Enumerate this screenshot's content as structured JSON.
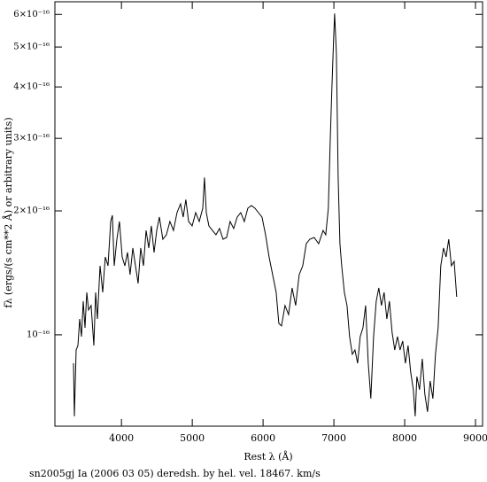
{
  "chart_data": {
    "type": "line",
    "caption": "sn2005gj Ia (2006 03 05) deredsh. by hel. vel. 18467. km/s",
    "xlabel": "Rest λ (Å)",
    "ylabel": "fλ (ergs/(s cm**2 Å) or arbitrary units)",
    "log_y": true,
    "color": "#000000",
    "xlim": [
      3060,
      9100
    ],
    "xticks": [
      4000,
      5000,
      6000,
      7000,
      8000,
      9000
    ],
    "ylim": [
      6e-17,
      6.44e-16
    ],
    "yticks": [
      {
        "value": 1e-16,
        "label": "10⁻¹⁶"
      },
      {
        "value": 2e-16,
        "label": "2×10⁻¹⁶"
      },
      {
        "value": 3e-16,
        "label": "3×10⁻¹⁶"
      },
      {
        "value": 4e-16,
        "label": "4×10⁻¹⁶"
      },
      {
        "value": 5e-16,
        "label": "5×10⁻¹⁶"
      },
      {
        "value": 6e-16,
        "label": "6×10⁻¹⁶"
      }
    ],
    "x": [
      3322,
      3335,
      3360,
      3385,
      3410,
      3435,
      3460,
      3485,
      3510,
      3535,
      3572,
      3610,
      3635,
      3660,
      3698,
      3735,
      3772,
      3810,
      3848,
      3872,
      3898,
      3935,
      3972,
      4010,
      4048,
      4085,
      4122,
      4160,
      4198,
      4235,
      4272,
      4310,
      4348,
      4385,
      4422,
      4460,
      4498,
      4535,
      4585,
      4635,
      4685,
      4735,
      4785,
      4835,
      4872,
      4910,
      4948,
      4998,
      5048,
      5098,
      5148,
      5172,
      5198,
      5235,
      5285,
      5335,
      5385,
      5435,
      5485,
      5535,
      5585,
      5635,
      5685,
      5735,
      5785,
      5835,
      5885,
      5935,
      5985,
      6035,
      6085,
      6135,
      6185,
      6222,
      6260,
      6310,
      6360,
      6410,
      6460,
      6510,
      6560,
      6610,
      6660,
      6722,
      6785,
      6848,
      6885,
      6922,
      6948,
      6972,
      6998,
      7010,
      7035,
      7060,
      7085,
      7110,
      7148,
      7185,
      7222,
      7260,
      7298,
      7335,
      7372,
      7410,
      7448,
      7485,
      7522,
      7560,
      7598,
      7635,
      7672,
      7710,
      7748,
      7785,
      7822,
      7860,
      7898,
      7935,
      7972,
      8010,
      8048,
      8085,
      8122,
      8148,
      8172,
      8210,
      8248,
      8285,
      8322,
      8360,
      8398,
      8435,
      8472,
      8510,
      8548,
      8585,
      8622,
      8660,
      8698,
      8735
    ],
    "values": [
      8.53e-17,
      6.34e-17,
      9.19e-17,
      9.42e-17,
      1.093e-16,
      9.9e-17,
      1.207e-16,
      1.04e-16,
      1.268e-16,
      1.149e-16,
      1.178e-16,
      9.42e-17,
      1.268e-16,
      1.093e-16,
      1.471e-16,
      1.268e-16,
      1.546e-16,
      1.471e-16,
      1.885e-16,
      1.951e-16,
      1.471e-16,
      1.707e-16,
      1.885e-16,
      1.546e-16,
      1.471e-16,
      1.585e-16,
      1.4e-16,
      1.625e-16,
      1.471e-16,
      1.333e-16,
      1.625e-16,
      1.471e-16,
      1.793e-16,
      1.625e-16,
      1.839e-16,
      1.585e-16,
      1.793e-16,
      1.932e-16,
      1.707e-16,
      1.75e-16,
      1.885e-16,
      1.793e-16,
      1.98e-16,
      2.08e-16,
      1.932e-16,
      2.13e-16,
      1.885e-16,
      1.839e-16,
      1.98e-16,
      1.885e-16,
      2.03e-16,
      2.41e-16,
      1.98e-16,
      1.839e-16,
      1.793e-16,
      1.75e-16,
      1.812e-16,
      1.707e-16,
      1.724e-16,
      1.885e-16,
      1.812e-16,
      1.932e-16,
      1.98e-16,
      1.885e-16,
      2.03e-16,
      2.06e-16,
      2.03e-16,
      1.98e-16,
      1.932e-16,
      1.75e-16,
      1.546e-16,
      1.4e-16,
      1.268e-16,
      1.066e-16,
      1.051e-16,
      1.178e-16,
      1.12e-16,
      1.3e-16,
      1.178e-16,
      1.4e-16,
      1.471e-16,
      1.665e-16,
      1.707e-16,
      1.724e-16,
      1.665e-16,
      1.793e-16,
      1.75e-16,
      2.03e-16,
      2.94e-16,
      3.96e-16,
      5.33e-16,
      6.03e-16,
      4.83e-16,
      2.41e-16,
      1.665e-16,
      1.471e-16,
      1.268e-16,
      1.178e-16,
      9.9e-17,
      8.97e-17,
      9.19e-17,
      8.53e-17,
      9.9e-17,
      1.04e-16,
      1.178e-16,
      8.53e-17,
      7e-17,
      9.9e-17,
      1.207e-16,
      1.3e-16,
      1.178e-16,
      1.268e-16,
      1.093e-16,
      1.207e-16,
      1.015e-16,
      9.19e-17,
      9.9e-17,
      9.19e-17,
      9.66e-17,
      8.53e-17,
      9.42e-17,
      8.12e-17,
      7.36e-17,
      6.34e-17,
      7.92e-17,
      7.36e-17,
      8.75e-17,
      7.18e-17,
      6.5e-17,
      7.73e-17,
      7e-17,
      8.97e-17,
      1.04e-16,
      1.471e-16,
      1.625e-16,
      1.546e-16,
      1.707e-16,
      1.471e-16,
      1.508e-16,
      1.237e-16
    ]
  }
}
